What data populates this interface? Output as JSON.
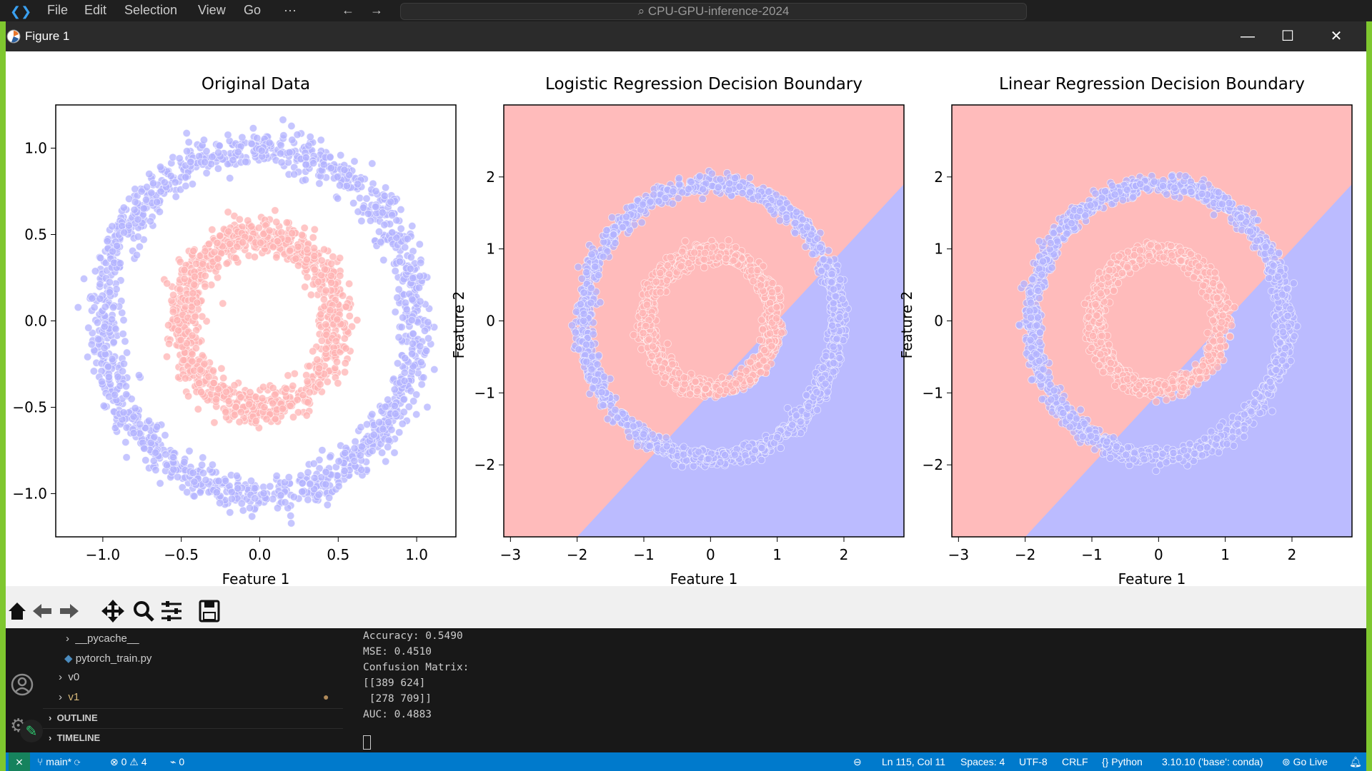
{
  "vscode": {
    "menu": [
      "File",
      "Edit",
      "Selection",
      "View",
      "Go",
      "···"
    ],
    "search_text": "CPU-GPU-inference-2024"
  },
  "figure": {
    "window_title": "Figure 1",
    "plots": [
      {
        "title": "Original Data",
        "xlabel": "Feature 1",
        "ylabel": "",
        "xticks": [
          "−1.0",
          "−0.5",
          "0.0",
          "0.5",
          "1.0"
        ],
        "yticks": [
          "1.0",
          "0.5",
          "0.0",
          "−0.5",
          "−1.0"
        ]
      },
      {
        "title": "Logistic Regression Decision Boundary",
        "xlabel": "Feature 1",
        "ylabel": "Feature 2",
        "xticks": [
          "−3",
          "−2",
          "−1",
          "0",
          "1",
          "2"
        ],
        "yticks": [
          "2",
          "1",
          "0",
          "−1",
          "−2"
        ]
      },
      {
        "title": "Linear Regression Decision Boundary",
        "xlabel": "Feature 1",
        "ylabel": "Feature 2",
        "xticks": [
          "−3",
          "−2",
          "−1",
          "0",
          "1",
          "2"
        ],
        "yticks": [
          "2",
          "1",
          "0",
          "−1",
          "−2"
        ]
      }
    ],
    "colors": {
      "outer": "#b3b3ff",
      "inner": "#ffb3b3",
      "region_red": "#ffbbbb",
      "region_blue": "#bbbbff"
    }
  },
  "chart_data": [
    {
      "type": "scatter",
      "title": "Original Data",
      "xlabel": "Feature 1",
      "ylabel": "",
      "xlim": [
        -1.3,
        1.25
      ],
      "ylim": [
        -1.25,
        1.25
      ],
      "series": [
        {
          "shape": "ring",
          "radius": 1.0,
          "noise": 0.1,
          "color": "#b3b3ff"
        },
        {
          "shape": "ring",
          "radius": 0.5,
          "noise": 0.1,
          "color": "#ffb3b3"
        }
      ]
    },
    {
      "type": "scatter",
      "title": "Logistic Regression Decision Boundary",
      "xlabel": "Feature 1",
      "ylabel": "Feature 2",
      "xlim": [
        -3.1,
        2.9
      ],
      "ylim": [
        -3.0,
        3.0
      ],
      "boundary": {
        "slope": 1.0,
        "intercept": -1.0
      },
      "series": [
        {
          "shape": "ring",
          "radius": 1.9,
          "noise": 0.12,
          "center": [
            0,
            0
          ],
          "color": "#b3b3ff"
        },
        {
          "shape": "ring",
          "radius": 0.95,
          "noise": 0.12,
          "center": [
            0,
            0
          ],
          "color": "#ffb3b3"
        }
      ]
    },
    {
      "type": "scatter",
      "title": "Linear Regression Decision Boundary",
      "xlabel": "Feature 1",
      "ylabel": "Feature 2",
      "xlim": [
        -3.1,
        2.9
      ],
      "ylim": [
        -3.0,
        3.0
      ],
      "boundary": {
        "slope": 1.0,
        "intercept": -1.0
      },
      "series": [
        {
          "shape": "ring",
          "radius": 1.9,
          "noise": 0.12,
          "center": [
            0,
            0
          ],
          "color": "#b3b3ff"
        },
        {
          "shape": "ring",
          "radius": 0.95,
          "noise": 0.12,
          "center": [
            0,
            0
          ],
          "color": "#ffb3b3"
        }
      ]
    }
  ],
  "explorer": {
    "items": [
      "__pycache__",
      "pytorch_train.py",
      "v0",
      "v1"
    ],
    "outline": "OUTLINE",
    "timeline": "TIMELINE"
  },
  "terminal": {
    "lines": [
      "Accuracy: 0.5490",
      "MSE: 0.4510",
      "Confusion Matrix:",
      "[[389 624]",
      " [278 709]]",
      "AUC: 0.4883"
    ]
  },
  "statusbar": {
    "branch": "main*",
    "problems": "⊗ 0 ⚠ 4",
    "ports": "0",
    "position": "Ln 115, Col 11",
    "spaces": "Spaces: 4",
    "encoding": "UTF-8",
    "eol": "CRLF",
    "language": "Python",
    "interpreter": "3.10.10 ('base': conda)",
    "golive": "Go Live"
  }
}
